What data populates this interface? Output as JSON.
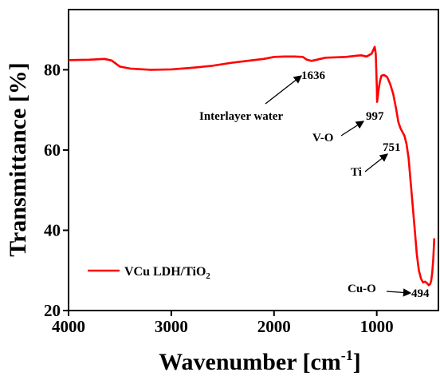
{
  "chart_data": {
    "type": "line",
    "xlabel": "Wavenumber [cm",
    "xlabel_sup": "-1",
    "xlabel_close": "]",
    "ylabel": "Transmittance [%]",
    "xlim": [
      4000,
      400
    ],
    "ylim": [
      20,
      95
    ],
    "x_reversed": true,
    "xticks": [
      4000,
      3000,
      2000,
      1000
    ],
    "yticks": [
      20,
      40,
      60,
      80
    ],
    "grid": false,
    "legend_position": "bottom-left",
    "series": [
      {
        "name": "VCu LDH/TiO",
        "name_sub": "2",
        "color": "#ff0000",
        "points": [
          [
            4000,
            82.4
          ],
          [
            3800,
            82.5
          ],
          [
            3650,
            82.7
          ],
          [
            3580,
            82.3
          ],
          [
            3500,
            80.8
          ],
          [
            3400,
            80.3
          ],
          [
            3200,
            80.0
          ],
          [
            3000,
            80.1
          ],
          [
            2800,
            80.5
          ],
          [
            2600,
            81.0
          ],
          [
            2400,
            81.8
          ],
          [
            2200,
            82.4
          ],
          [
            2100,
            82.7
          ],
          [
            2000,
            83.2
          ],
          [
            1900,
            83.3
          ],
          [
            1800,
            83.3
          ],
          [
            1720,
            83.2
          ],
          [
            1680,
            82.5
          ],
          [
            1636,
            82.2
          ],
          [
            1600,
            82.4
          ],
          [
            1500,
            83.0
          ],
          [
            1400,
            83.1
          ],
          [
            1300,
            83.2
          ],
          [
            1200,
            83.5
          ],
          [
            1150,
            83.6
          ],
          [
            1100,
            83.3
          ],
          [
            1050,
            84.0
          ],
          [
            1020,
            85.7
          ],
          [
            1010,
            84.0
          ],
          [
            1000,
            76.0
          ],
          [
            997,
            72.0
          ],
          [
            985,
            74.5
          ],
          [
            970,
            77.0
          ],
          [
            955,
            78.5
          ],
          [
            930,
            78.7
          ],
          [
            900,
            78.2
          ],
          [
            870,
            76.5
          ],
          [
            840,
            74.0
          ],
          [
            810,
            70.0
          ],
          [
            790,
            67.0
          ],
          [
            770,
            65.5
          ],
          [
            751,
            64.5
          ],
          [
            730,
            63.5
          ],
          [
            710,
            61.5
          ],
          [
            690,
            58.0
          ],
          [
            670,
            52.0
          ],
          [
            650,
            46.0
          ],
          [
            630,
            40.0
          ],
          [
            610,
            34.0
          ],
          [
            590,
            30.0
          ],
          [
            570,
            28.0
          ],
          [
            550,
            27.0
          ],
          [
            530,
            27.2
          ],
          [
            510,
            26.8
          ],
          [
            494,
            26.3
          ],
          [
            480,
            26.6
          ],
          [
            470,
            27.5
          ],
          [
            460,
            29.5
          ],
          [
            450,
            33.0
          ],
          [
            440,
            38.0
          ]
        ]
      }
    ],
    "annotations": [
      {
        "label": "1636",
        "x": 1636
      },
      {
        "label": "Interlayer water",
        "x": 1636
      },
      {
        "label": "997",
        "x": 997
      },
      {
        "label": "V-O",
        "x": 997
      },
      {
        "label": "751",
        "x": 751
      },
      {
        "label": "Ti",
        "x": 751
      },
      {
        "label": "494",
        "x": 494
      },
      {
        "label": "Cu-O",
        "x": 494
      }
    ]
  }
}
